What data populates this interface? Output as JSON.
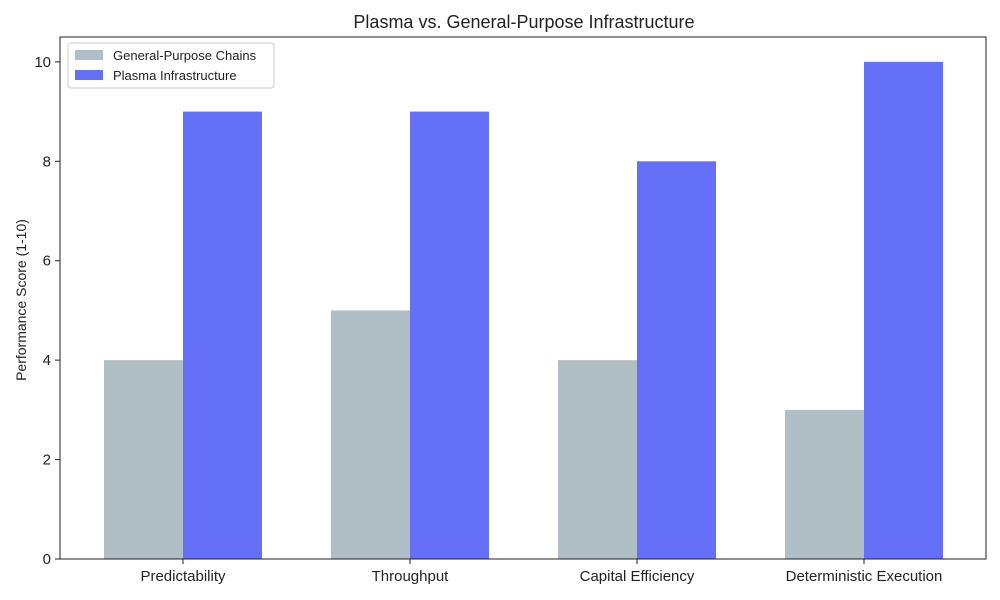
{
  "chart_data": {
    "type": "bar",
    "title": "Plasma vs. General-Purpose Infrastructure",
    "xlabel": "",
    "ylabel": "Performance Score (1-10)",
    "categories": [
      "Predictability",
      "Throughput",
      "Capital Efficiency",
      "Deterministic Execution"
    ],
    "series": [
      {
        "name": "General-Purpose Chains",
        "values": [
          4,
          5,
          4,
          3
        ],
        "color": "#b0bec5"
      },
      {
        "name": "Plasma Infrastructure",
        "values": [
          9,
          9,
          8,
          10
        ],
        "color": "#6470f8"
      }
    ],
    "ylim": [
      0,
      10.5
    ],
    "yticks": [
      0,
      2,
      4,
      6,
      8,
      10
    ],
    "grid": false,
    "legend_position": "top-left"
  }
}
